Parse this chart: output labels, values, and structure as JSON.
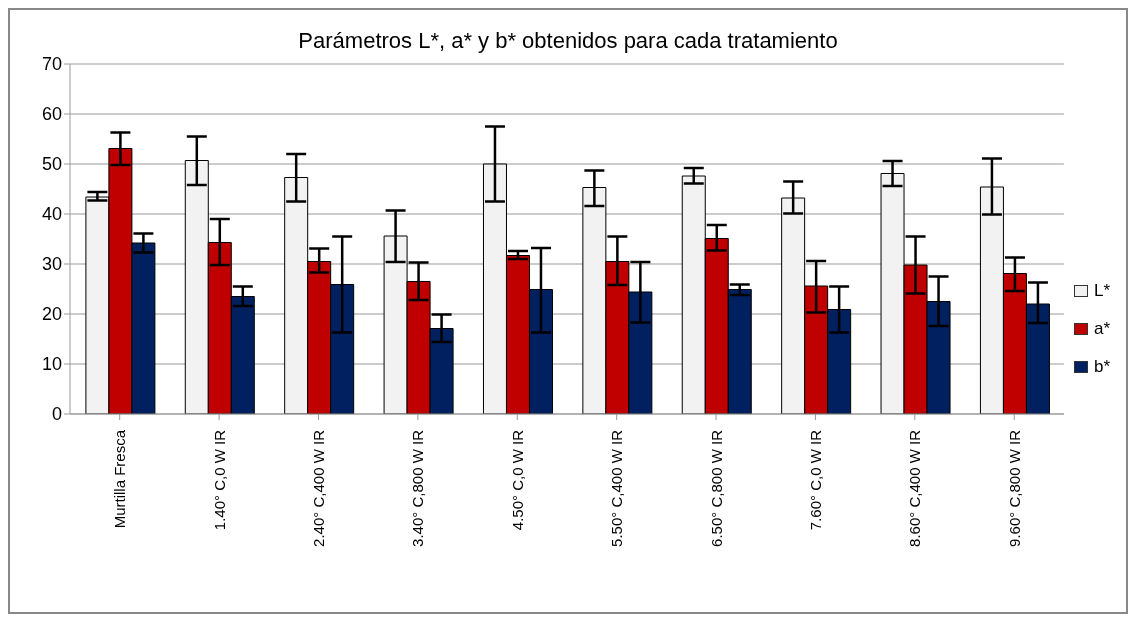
{
  "chart_data": {
    "type": "bar",
    "title": "Parámetros L*, a* y b* obtenidos para cada tratamiento",
    "categories": [
      "Murtilla Fresca",
      "1.40° C,0 W IR",
      "2.40° C,400 W IR",
      "3.40° C,800 W IR",
      "4.50° C,0 W IR",
      "5.50° C,400 W IR",
      "6.50° C,800 W IR",
      "7.60° C,0 W IR",
      "8.60° C,400 W IR",
      "9.60° C,800 W IR"
    ],
    "series": [
      {
        "name": "L*",
        "color": "#f2f2f2",
        "values": [
          43.4,
          50.7,
          47.3,
          35.6,
          50.0,
          45.3,
          47.6,
          43.2,
          48.1,
          45.4
        ],
        "errors": [
          [
            42.7,
            44.4
          ],
          [
            45.8,
            55.5
          ],
          [
            42.5,
            52.0
          ],
          [
            30.4,
            40.7
          ],
          [
            42.5,
            57.5
          ],
          [
            41.6,
            48.7
          ],
          [
            46.1,
            49.2
          ],
          [
            40.1,
            46.5
          ],
          [
            45.6,
            50.6
          ],
          [
            39.9,
            51.1
          ]
        ]
      },
      {
        "name": "a*",
        "color": "#c00000",
        "values": [
          53.1,
          34.3,
          30.5,
          26.5,
          31.7,
          30.5,
          35.1,
          25.6,
          29.8,
          28.1
        ],
        "errors": [
          [
            49.8,
            56.3
          ],
          [
            29.8,
            39.0
          ],
          [
            28.3,
            33.1
          ],
          [
            22.8,
            30.3
          ],
          [
            31.0,
            32.6
          ],
          [
            25.8,
            35.5
          ],
          [
            32.7,
            37.8
          ],
          [
            20.3,
            30.6
          ],
          [
            24.1,
            35.5
          ],
          [
            24.6,
            31.3
          ]
        ]
      },
      {
        "name": "b*",
        "color": "#002060",
        "values": [
          34.2,
          23.5,
          25.9,
          17.1,
          24.9,
          24.4,
          24.9,
          20.9,
          22.5,
          22.0
        ],
        "errors": [
          [
            32.3,
            36.1
          ],
          [
            21.6,
            25.5
          ],
          [
            16.3,
            35.5
          ],
          [
            14.4,
            19.9
          ],
          [
            16.3,
            33.2
          ],
          [
            18.3,
            30.4
          ],
          [
            23.8,
            25.9
          ],
          [
            16.3,
            25.5
          ],
          [
            17.6,
            27.5
          ],
          [
            18.2,
            26.3
          ]
        ]
      }
    ],
    "ylim": [
      0,
      70
    ],
    "yticks": [
      0,
      10,
      20,
      30,
      40,
      50,
      60,
      70
    ],
    "grid": "y",
    "legend": "right"
  }
}
